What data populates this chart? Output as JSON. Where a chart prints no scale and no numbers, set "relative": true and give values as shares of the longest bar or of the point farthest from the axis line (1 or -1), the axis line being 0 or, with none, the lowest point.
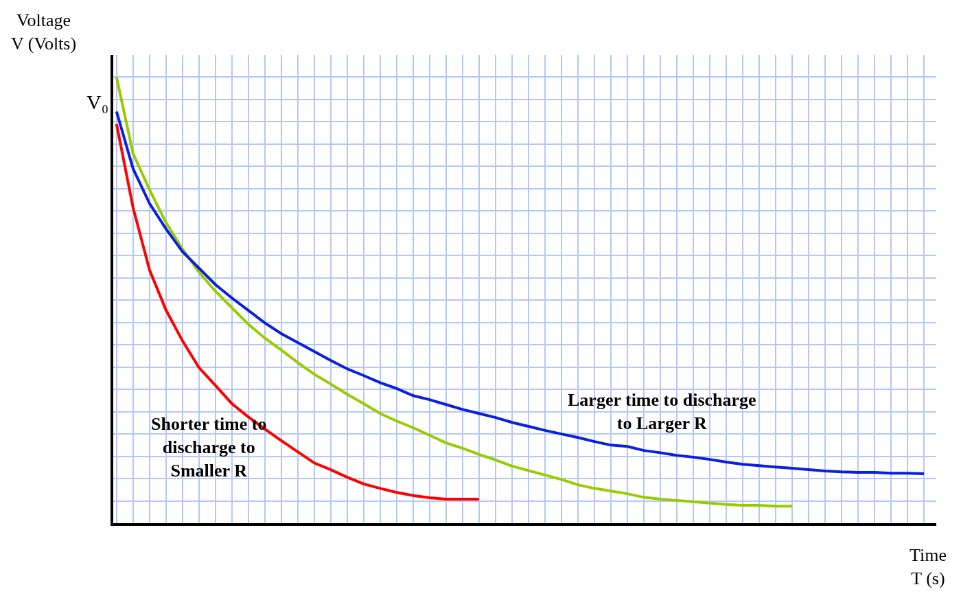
{
  "chart_data": {
    "type": "line",
    "relative": true,
    "xlabel": "Time\nT (s)",
    "ylabel": "Voltage\nV (Volts)",
    "categories": [
      null,
      null,
      null,
      null,
      null,
      null,
      null,
      null,
      null,
      null,
      null,
      null,
      null,
      null,
      null,
      null,
      null,
      null,
      null,
      null,
      null,
      null,
      null,
      null,
      null,
      null,
      null,
      null,
      null,
      null,
      null,
      null,
      null,
      null,
      null,
      null,
      null,
      null,
      null,
      null,
      null,
      null,
      null,
      null,
      null,
      null,
      null,
      null,
      null,
      null
    ],
    "tick_labels": false,
    "grid": true,
    "marker": "none",
    "line_style": "solid",
    "annotations": [
      "V₀",
      "Shorter time to\ndischarge to\nSmaller R",
      "Larger time to discharge\nto Larger R"
    ],
    "series": [
      {
        "color": "#ff0000",
        "values": [
          0.895,
          0.708,
          0.568,
          0.478,
          0.409,
          0.349,
          0.309,
          0.268,
          0.238,
          0.211,
          0.185,
          0.16,
          0.135,
          0.12,
          0.103,
          0.088,
          0.078,
          0.069,
          0.062,
          0.057,
          0.054,
          0.054,
          0.054,
          null,
          null,
          null,
          null,
          null,
          null,
          null,
          null,
          null,
          null,
          null,
          null,
          null,
          null,
          null,
          null,
          null,
          null,
          null,
          null,
          null,
          null,
          null,
          null,
          null,
          null,
          null
        ]
      },
      {
        "color": "#99cc00",
        "values": [
          1.0,
          0.829,
          0.748,
          0.674,
          0.615,
          0.563,
          0.52,
          0.483,
          0.446,
          0.415,
          0.388,
          0.36,
          0.334,
          0.312,
          0.289,
          0.268,
          0.246,
          0.229,
          0.214,
          0.197,
          0.18,
          0.168,
          0.154,
          0.142,
          0.128,
          0.118,
          0.108,
          0.098,
          0.086,
          0.078,
          0.072,
          0.066,
          0.058,
          0.054,
          0.051,
          0.048,
          0.045,
          0.042,
          0.04,
          0.04,
          0.038,
          0.038,
          null,
          null,
          null,
          null,
          null,
          null,
          null,
          null
        ]
      },
      {
        "color": "#0a1ee6",
        "values": [
          0.923,
          0.795,
          0.717,
          0.66,
          0.609,
          0.572,
          0.535,
          0.505,
          0.477,
          0.449,
          0.425,
          0.405,
          0.385,
          0.365,
          0.346,
          0.331,
          0.315,
          0.302,
          0.286,
          0.277,
          0.266,
          0.255,
          0.246,
          0.237,
          0.226,
          0.217,
          0.208,
          0.2,
          0.192,
          0.183,
          0.175,
          0.172,
          0.163,
          0.158,
          0.152,
          0.148,
          0.143,
          0.137,
          0.132,
          0.129,
          0.126,
          0.123,
          0.12,
          0.117,
          0.115,
          0.114,
          0.114,
          0.112,
          0.112,
          0.111
        ]
      }
    ]
  }
}
